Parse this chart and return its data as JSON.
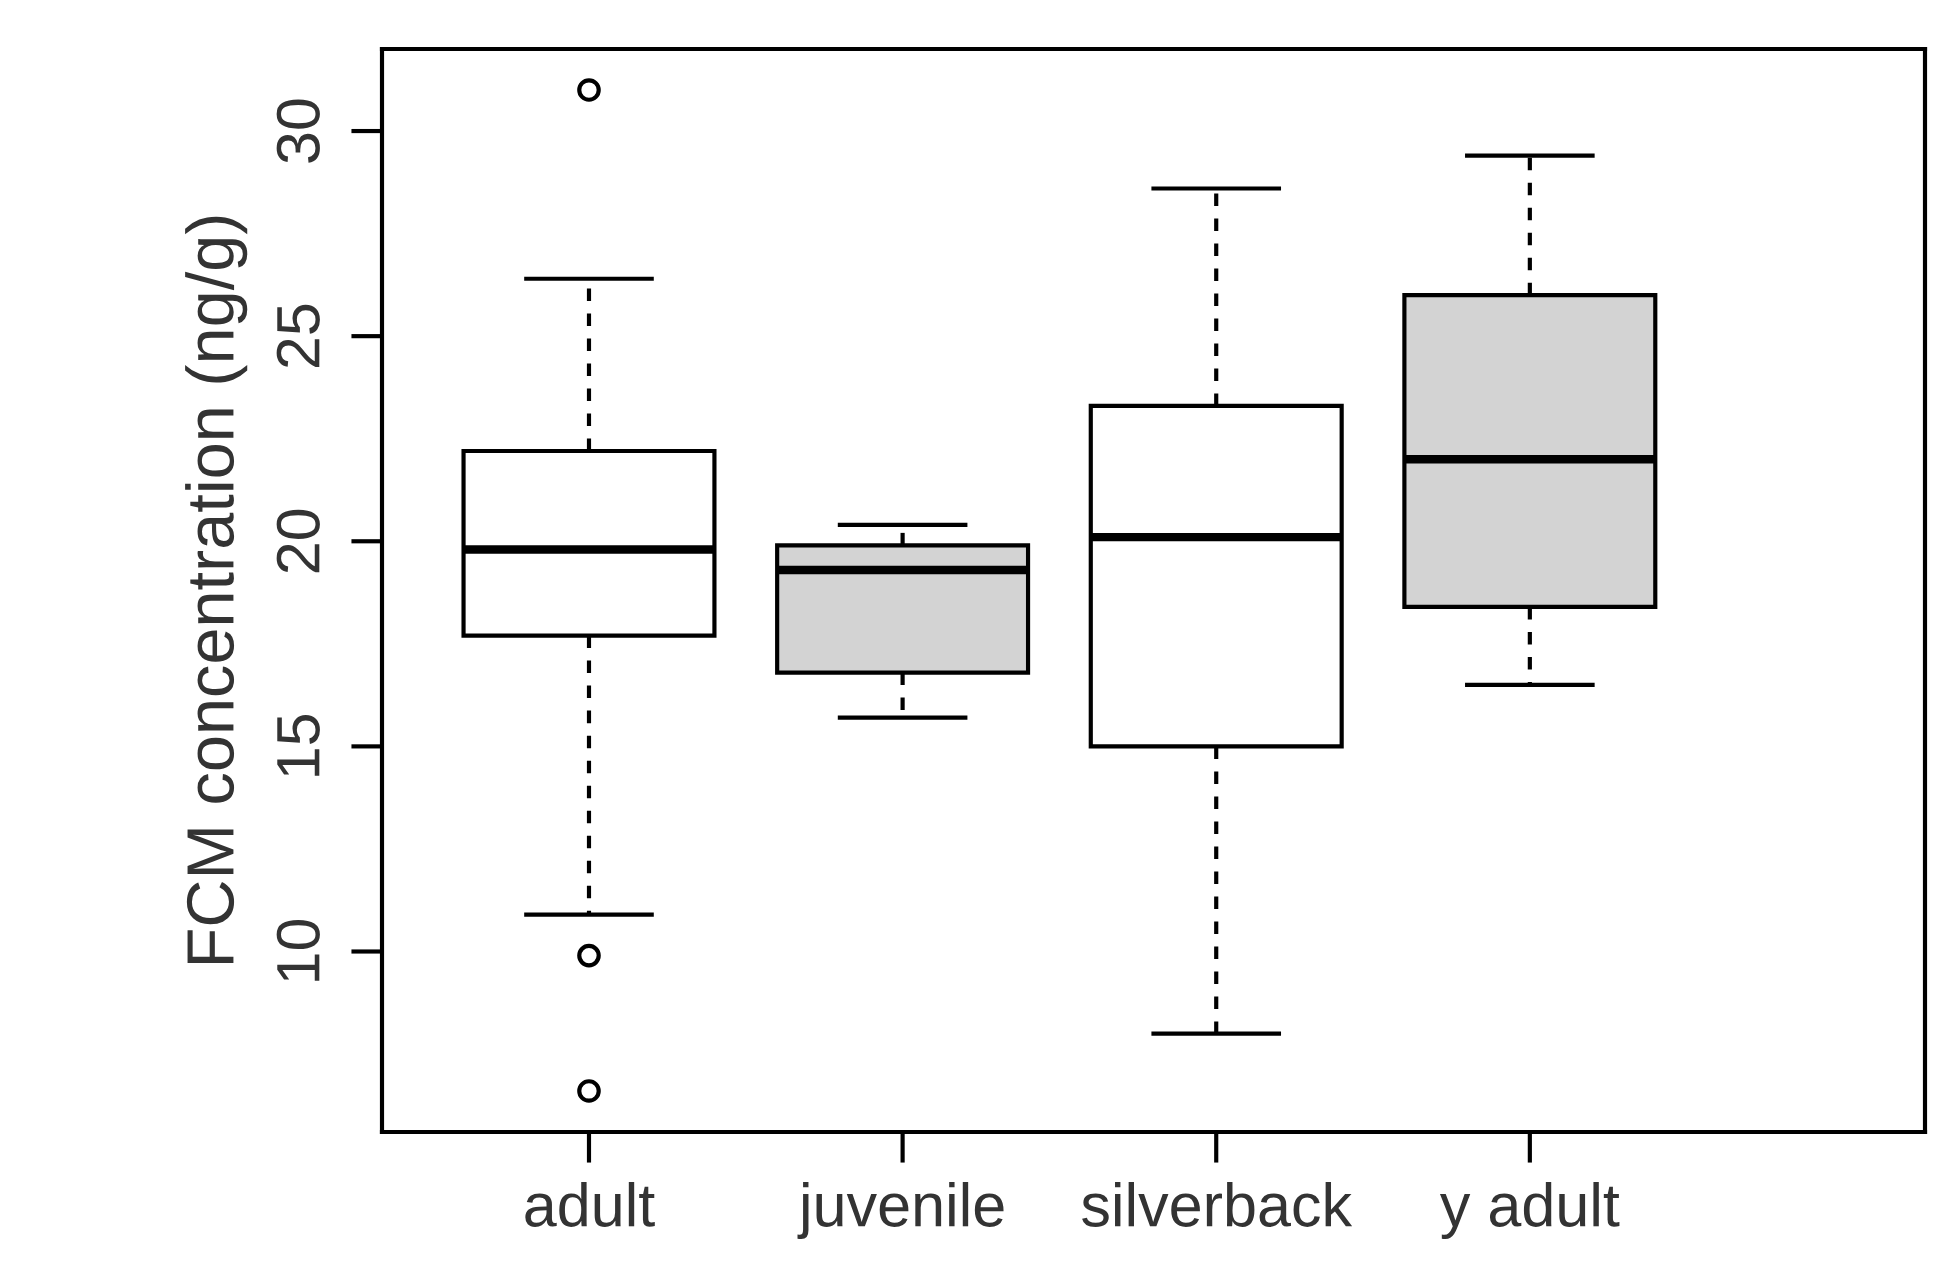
{
  "chart_data": {
    "type": "box",
    "ylabel": "FCM concentration (ng/g)",
    "categories": [
      "adult",
      "juvenile",
      "silverback",
      "y adult"
    ],
    "colors": [
      "#ffffff",
      "#d3d3d3",
      "#ffffff",
      "#d3d3d3"
    ],
    "boxes": [
      {
        "low": 10.9,
        "q1": 17.7,
        "median": 19.8,
        "q3": 22.2,
        "high": 26.4,
        "outliers": [
          31.0,
          9.9,
          6.6
        ]
      },
      {
        "low": 15.7,
        "q1": 16.8,
        "median": 19.3,
        "q3": 19.9,
        "high": 20.4
      },
      {
        "low": 8.0,
        "q1": 15.0,
        "median": 20.1,
        "q3": 23.3,
        "high": 28.6
      },
      {
        "low": 16.5,
        "q1": 18.4,
        "median": 22.0,
        "q3": 26.0,
        "high": 29.4
      }
    ],
    "ylim": [
      5.6,
      32.0
    ],
    "yticks": [
      10,
      15,
      20,
      25,
      30
    ],
    "grid": false,
    "legend": false
  }
}
